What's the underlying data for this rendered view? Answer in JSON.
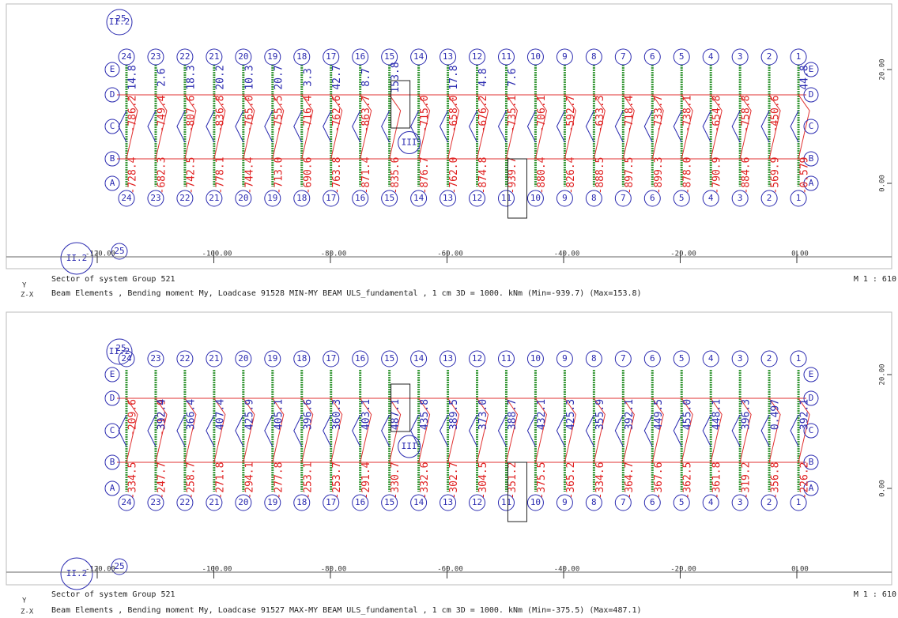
{
  "panels": [
    {
      "marker_top": "II.2",
      "marker_top_num": "25",
      "marker_bottom": "II.2",
      "marker_bottom_num": "25",
      "section_label": "III",
      "axis_numbers": [
        "24",
        "23",
        "22",
        "21",
        "20",
        "19",
        "18",
        "17",
        "16",
        "15",
        "14",
        "13",
        "12",
        "11",
        "10",
        "9",
        "8",
        "7",
        "6",
        "5",
        "4",
        "3",
        "2",
        "1"
      ],
      "row_letters": [
        "E",
        "D",
        "C",
        "B",
        "A"
      ],
      "xticks": [
        {
          "value": -120,
          "label": "-120.00"
        },
        {
          "value": -100,
          "label": "-100.00"
        },
        {
          "value": -80,
          "label": "-80.00"
        },
        {
          "value": -60,
          "label": "-60.00"
        },
        {
          "value": -40,
          "label": "-40.00"
        },
        {
          "value": -20,
          "label": "-20.00"
        },
        {
          "value": 0,
          "label": "0.00"
        }
      ],
      "yticks": [
        {
          "value": 20,
          "label": "20.00"
        },
        {
          "value": 0,
          "label": "0.00"
        }
      ],
      "upper_labels": [
        "-786.2",
        "-749.4",
        "-807.6",
        "-836.8",
        "-765.0",
        "-755.5",
        "-716.4",
        "-762.6",
        "-863.7",
        null,
        "-715.0",
        "-658.0",
        "-676.2",
        "-735.1",
        "-706.1",
        "-592.7",
        "-633.3",
        "-718.4",
        "-733.7",
        "-738.1",
        "-654.8",
        "-758.8",
        "-450.6",
        null
      ],
      "lower_labels": [
        "-728.4",
        "-682.3",
        "-742.5",
        "-778.1",
        "-744.4",
        "-713.0",
        "-690.6",
        "-763.8",
        "-871.4",
        "-835.6",
        "-876.7",
        "-762.0",
        "-874.8",
        "-939.7",
        "-880.4",
        "-826.4",
        "-888.5",
        "-897.5",
        "-899.3",
        "-878.0",
        "-790.9",
        "-884.6",
        "-569.9",
        "-0.579"
      ],
      "blue_labels": [
        "14.8",
        "2.6",
        "18.3",
        "20.2",
        "10.3",
        "20.7",
        "3.3",
        "42.7",
        "8.7",
        "153.8",
        null,
        "17.8",
        "4.8",
        "7.6",
        null,
        null,
        null,
        null,
        null,
        null,
        null,
        null,
        null,
        "44.8"
      ],
      "caption_sector": "Sector of system Group 521",
      "caption_detail": "Beam Elements , Bending moment My, Loadcase 91528  MIN-MY BEAM ULS_fundamental    , 1 cm 3D =  1000. kNm (Min=-939.7) (Max=153.8)",
      "scale": "M 1 : 610",
      "axis_y": "Y",
      "axis_zx": "Z-X"
    },
    {
      "marker_top": "II.2",
      "marker_top_num": "25",
      "marker_bottom": "II.2",
      "marker_bottom_num": "25",
      "section_label": "III",
      "axis_numbers": [
        "24",
        "23",
        "22",
        "21",
        "20",
        "19",
        "18",
        "17",
        "16",
        "15",
        "14",
        "13",
        "12",
        "11",
        "10",
        "9",
        "8",
        "7",
        "6",
        "5",
        "4",
        "3",
        "2",
        "1"
      ],
      "row_letters": [
        "E",
        "D",
        "C",
        "B",
        "A"
      ],
      "xticks": [
        {
          "value": -120,
          "label": "-120.00"
        },
        {
          "value": -100,
          "label": "-100.00"
        },
        {
          "value": -80,
          "label": "-80.00"
        },
        {
          "value": -60,
          "label": "-60.00"
        },
        {
          "value": -40,
          "label": "-40.00"
        },
        {
          "value": -20,
          "label": "-20.00"
        },
        {
          "value": 0,
          "label": "0.00"
        }
      ],
      "yticks": [
        {
          "value": 20,
          "label": "20.00"
        },
        {
          "value": 0,
          "label": "0.00"
        }
      ],
      "upper_labels": [
        "-209.6",
        "-312.9",
        null,
        null,
        null,
        null,
        null,
        null,
        null,
        null,
        null,
        null,
        null,
        null,
        null,
        null,
        null,
        null,
        null,
        null,
        null,
        null,
        null,
        null
      ],
      "lower_labels": [
        "-334.5",
        "-247.7",
        "-258.7",
        "-271.8",
        "-294.1",
        "-277.8",
        "-253.1",
        "-253.7",
        "-291.4",
        "-330.7",
        "-332.6",
        "-302.7",
        "-304.5",
        "-351.2",
        "-375.5",
        "-365.2",
        "-334.6",
        "-364.7",
        "-367.6",
        "-362.5",
        "-361.8",
        "-319.2",
        "-356.8",
        "-226.2"
      ],
      "blue_labels": [
        null,
        "392.4",
        "366.4",
        "407.4",
        "425.9",
        "405.1",
        "396.6",
        "360.3",
        "403.1",
        "487.1",
        "435.8",
        "389.5",
        "373.0",
        "388.7",
        "432.1",
        "425.3",
        "355.9",
        "392.1",
        "449.5",
        "455.0",
        "448.1",
        "396.3",
        "0.497",
        "392.1"
      ],
      "caption_sector": "Sector of system Group 521",
      "caption_detail": "Beam Elements , Bending moment My, Loadcase 91527  MAX-MY BEAM ULS_fundamental    , 1 cm 3D =  1000. kNm (Min=-375.5) (Max=487.1)",
      "scale": "M 1 : 610",
      "axis_y": "Y",
      "axis_zx": "Z-X"
    }
  ]
}
